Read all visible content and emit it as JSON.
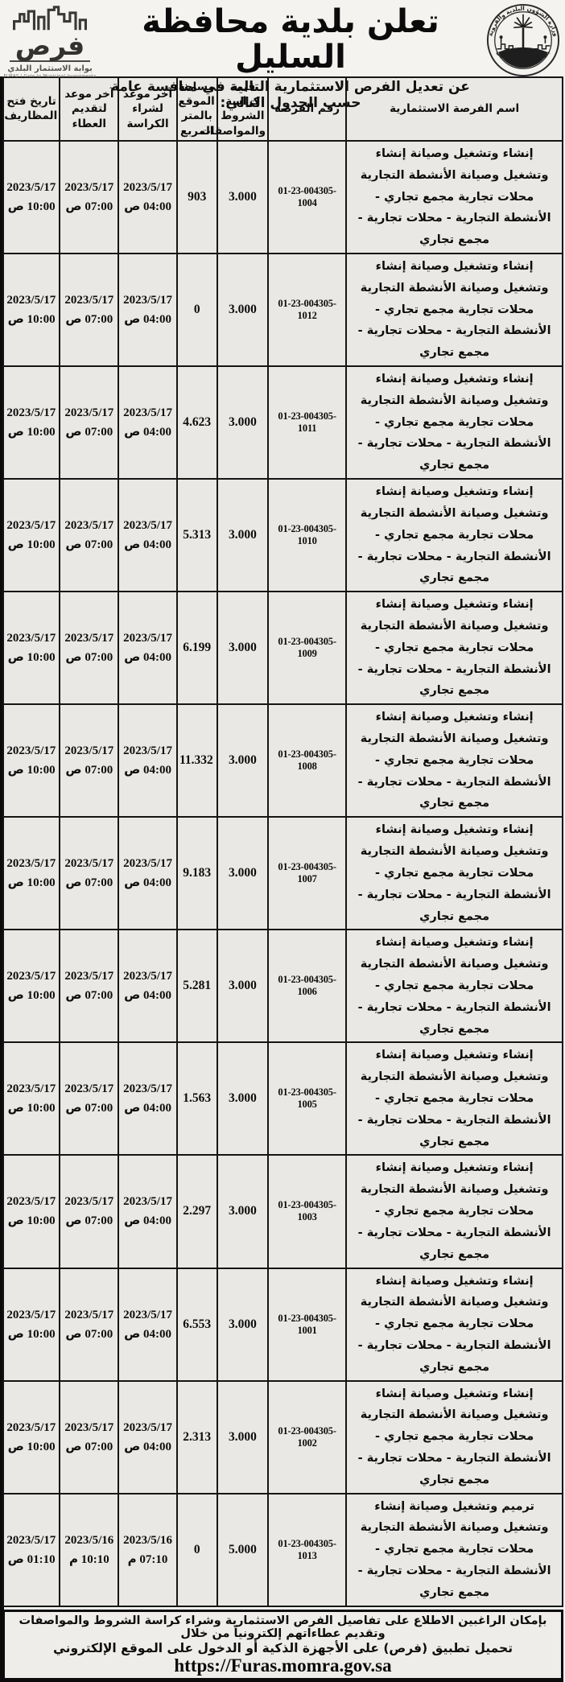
{
  "header": {
    "title": "تعلن بلدية محافظة السليل",
    "subtitle": "عن تعديل الفرص الاستثمارية التالية في منافسة عامة حسب الجدول التالي:",
    "furas_logo": {
      "wordmark": "فرص",
      "tagline_ar": "بوابة الاستثمار البلدي",
      "tagline_en": "FURAS | Gate to Municipal Investments"
    },
    "emblem": {
      "top_text": "وزارة الشؤون البلدية والقروية",
      "bottom_text": "بلدية محافظة السليل"
    }
  },
  "table": {
    "columns": [
      "اسم الفرصة الاستثمارية",
      "رقم الفرصة",
      "قيمة كراسة الشروط والمواصفات",
      "مساحة الموقع بالمتر المربع",
      "آخر موعد لشراء الكراسة",
      "آخر موعد لتقديم العطاء",
      "تاريخ فتح المظاريف"
    ],
    "rows": [
      {
        "name": "إنشاء وتشغيل وصيانة إنشاء وتشغيل وصيانة الأنشطة التجارية محلات تجارية مجمع تجاري - الأنشطة التجارية - محلات تجارية - مجمع تجاري",
        "number": "01-23-004305-1004",
        "booklet_price": "3.000",
        "area_sqm": "903",
        "purchase_date": "2023/5/17",
        "purchase_time": "04:00 ص",
        "submission_date": "2023/5/17",
        "submission_time": "07:00 ص",
        "opening_date": "2023/5/17",
        "opening_time": "10:00 ص"
      },
      {
        "name": "إنشاء وتشغيل وصيانة إنشاء وتشغيل وصيانة الأنشطة التجارية محلات تجارية مجمع تجاري - الأنشطة التجارية - محلات تجارية - مجمع تجاري",
        "number": "01-23-004305-1012",
        "booklet_price": "3.000",
        "area_sqm": "0",
        "purchase_date": "2023/5/17",
        "purchase_time": "04:00 ص",
        "submission_date": "2023/5/17",
        "submission_time": "07:00 ص",
        "opening_date": "2023/5/17",
        "opening_time": "10:00 ص"
      },
      {
        "name": "إنشاء وتشغيل وصيانة إنشاء وتشغيل وصيانة الأنشطة التجارية محلات تجارية مجمع تجاري - الأنشطة التجارية - محلات تجارية - مجمع تجاري",
        "number": "01-23-004305-1011",
        "booklet_price": "3.000",
        "area_sqm": "4.623",
        "purchase_date": "2023/5/17",
        "purchase_time": "04:00 ص",
        "submission_date": "2023/5/17",
        "submission_time": "07:00 ص",
        "opening_date": "2023/5/17",
        "opening_time": "10:00 ص"
      },
      {
        "name": "إنشاء وتشغيل وصيانة إنشاء وتشغيل وصيانة الأنشطة التجارية محلات تجارية مجمع تجاري - الأنشطة التجارية - محلات تجارية - مجمع تجاري",
        "number": "01-23-004305-1010",
        "booklet_price": "3.000",
        "area_sqm": "5.313",
        "purchase_date": "2023/5/17",
        "purchase_time": "04:00 ص",
        "submission_date": "2023/5/17",
        "submission_time": "07:00 ص",
        "opening_date": "2023/5/17",
        "opening_time": "10:00 ص"
      },
      {
        "name": "إنشاء وتشغيل وصيانة إنشاء وتشغيل وصيانة الأنشطة التجارية محلات تجارية مجمع تجاري - الأنشطة التجارية - محلات تجارية - مجمع تجاري",
        "number": "01-23-004305-1009",
        "booklet_price": "3.000",
        "area_sqm": "6.199",
        "purchase_date": "2023/5/17",
        "purchase_time": "04:00 ص",
        "submission_date": "2023/5/17",
        "submission_time": "07:00 ص",
        "opening_date": "2023/5/17",
        "opening_time": "10:00 ص"
      },
      {
        "name": "إنشاء وتشغيل وصيانة إنشاء وتشغيل وصيانة الأنشطة التجارية محلات تجارية مجمع تجاري - الأنشطة التجارية - محلات تجارية - مجمع تجاري",
        "number": "01-23-004305-1008",
        "booklet_price": "3.000",
        "area_sqm": "11.332",
        "purchase_date": "2023/5/17",
        "purchase_time": "04:00 ص",
        "submission_date": "2023/5/17",
        "submission_time": "07:00 ص",
        "opening_date": "2023/5/17",
        "opening_time": "10:00 ص"
      },
      {
        "name": "إنشاء وتشغيل وصيانة إنشاء وتشغيل وصيانة الأنشطة التجارية محلات تجارية مجمع تجاري - الأنشطة التجارية - محلات تجارية - مجمع تجاري",
        "number": "01-23-004305-1007",
        "booklet_price": "3.000",
        "area_sqm": "9.183",
        "purchase_date": "2023/5/17",
        "purchase_time": "04:00 ص",
        "submission_date": "2023/5/17",
        "submission_time": "07:00 ص",
        "opening_date": "2023/5/17",
        "opening_time": "10:00 ص"
      },
      {
        "name": "إنشاء وتشغيل وصيانة إنشاء وتشغيل وصيانة الأنشطة التجارية محلات تجارية مجمع تجاري - الأنشطة التجارية - محلات تجارية - مجمع تجاري",
        "number": "01-23-004305-1006",
        "booklet_price": "3.000",
        "area_sqm": "5.281",
        "purchase_date": "2023/5/17",
        "purchase_time": "04:00 ص",
        "submission_date": "2023/5/17",
        "submission_time": "07:00 ص",
        "opening_date": "2023/5/17",
        "opening_time": "10:00 ص"
      },
      {
        "name": "إنشاء وتشغيل وصيانة إنشاء وتشغيل وصيانة الأنشطة التجارية محلات تجارية مجمع تجاري - الأنشطة التجارية - محلات تجارية - مجمع تجاري",
        "number": "01-23-004305-1005",
        "booklet_price": "3.000",
        "area_sqm": "1.563",
        "purchase_date": "2023/5/17",
        "purchase_time": "04:00 ص",
        "submission_date": "2023/5/17",
        "submission_time": "07:00 ص",
        "opening_date": "2023/5/17",
        "opening_time": "10:00 ص"
      },
      {
        "name": "إنشاء وتشغيل وصيانة إنشاء وتشغيل وصيانة الأنشطة التجارية محلات تجارية مجمع تجاري - الأنشطة التجارية - محلات تجارية - مجمع تجاري",
        "number": "01-23-004305-1003",
        "booklet_price": "3.000",
        "area_sqm": "2.297",
        "purchase_date": "2023/5/17",
        "purchase_time": "04:00 ص",
        "submission_date": "2023/5/17",
        "submission_time": "07:00 ص",
        "opening_date": "2023/5/17",
        "opening_time": "10:00 ص"
      },
      {
        "name": "إنشاء وتشغيل وصيانة إنشاء وتشغيل وصيانة الأنشطة التجارية محلات تجارية مجمع تجاري - الأنشطة التجارية - محلات تجارية - مجمع تجاري",
        "number": "01-23-004305-1001",
        "booklet_price": "3.000",
        "area_sqm": "6.553",
        "purchase_date": "2023/5/17",
        "purchase_time": "04:00 ص",
        "submission_date": "2023/5/17",
        "submission_time": "07:00 ص",
        "opening_date": "2023/5/17",
        "opening_time": "10:00 ص"
      },
      {
        "name": "إنشاء وتشغيل وصيانة إنشاء وتشغيل وصيانة الأنشطة التجارية محلات تجارية مجمع تجاري - الأنشطة التجارية - محلات تجارية - مجمع تجاري",
        "number": "01-23-004305-1002",
        "booklet_price": "3.000",
        "area_sqm": "2.313",
        "purchase_date": "2023/5/17",
        "purchase_time": "04:00 ص",
        "submission_date": "2023/5/17",
        "submission_time": "07:00 ص",
        "opening_date": "2023/5/17",
        "opening_time": "10:00 ص"
      },
      {
        "name": "ترميم وتشغيل وصيانة إنشاء وتشغيل وصيانة الأنشطة التجارية محلات تجارية مجمع تجاري - الأنشطة التجارية - محلات تجارية - مجمع تجاري",
        "number": "01-23-004305-1013",
        "booklet_price": "5.000",
        "area_sqm": "0",
        "purchase_date": "2023/5/16",
        "purchase_time": "07:10 م",
        "submission_date": "2023/5/16",
        "submission_time": "10:10 م",
        "opening_date": "2023/5/17",
        "opening_time": "01:10 ص"
      }
    ]
  },
  "footer": {
    "line1": "بإمكان الراغبين الاطلاع على تفاصيل الفرص الاستثمارية وشراء كراسة الشروط والمواصفات وتقديم عطاءاتهم إلكترونياً من خلال",
    "line2_prefix": "تحميل تطبيق (فرص) على الأجهزة الذكية أو الدخول على الموقع الإلكتروني",
    "url": "https://Furas.momra.gov.sa"
  }
}
